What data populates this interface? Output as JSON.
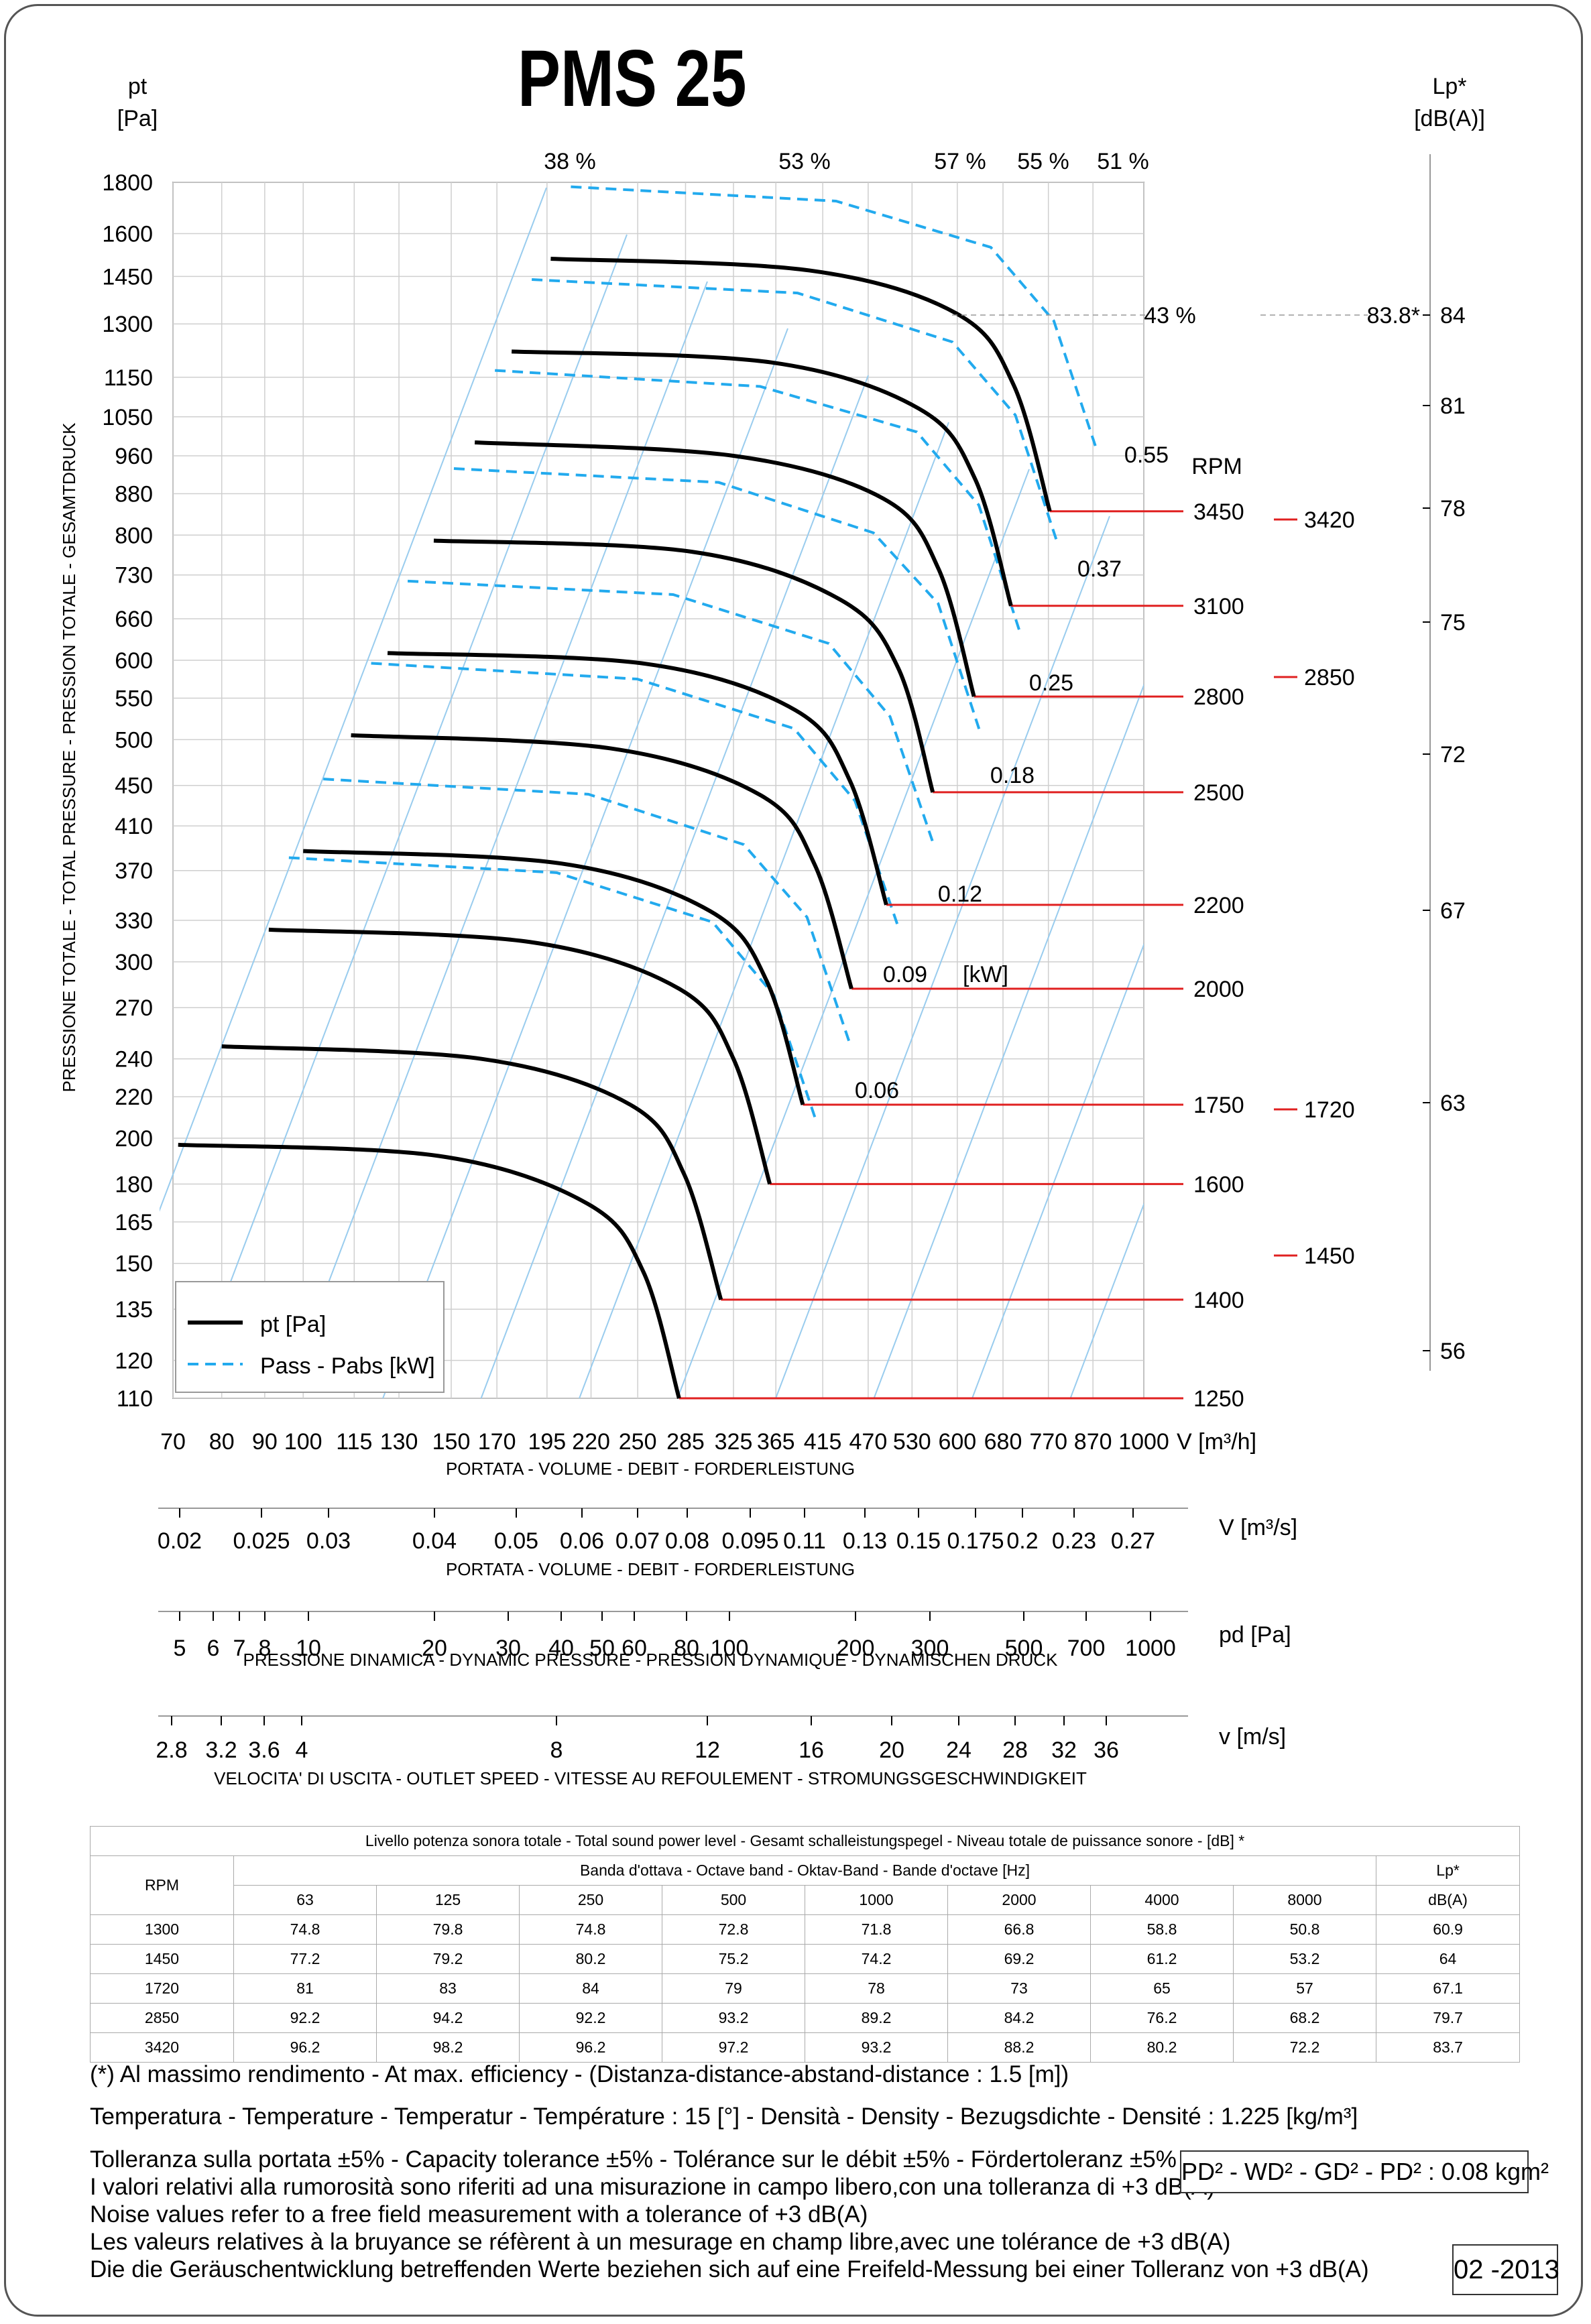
{
  "title": "PMS 25",
  "y_left_label": [
    "pt",
    "[Pa]"
  ],
  "y_right_label": [
    "Lp*",
    "[dB(A)]"
  ],
  "y_axis_title": "PRESSIONE TOTALE - TOTAL PRESSURE - PRESSION TOTALE - GESAMTDRUCK",
  "rpm_header": "RPM",
  "legend": {
    "pt": "pt [Pa]",
    "pass": "Pass - Pabs [kW]"
  },
  "axes": {
    "V_m3h": {
      "unit": "V [m³/h]",
      "title": "PORTATA - VOLUME - DEBIT - FORDERLEISTUNG",
      "ticks": [
        "70",
        "80",
        "90",
        "100",
        "115",
        "130",
        "150",
        "170",
        "195",
        "220",
        "250",
        "285",
        "325",
        "365",
        "415",
        "470",
        "530",
        "600",
        "680",
        "770",
        "870",
        "1000"
      ]
    },
    "V_m3s": {
      "unit": "V  [m³/s]",
      "title": "PORTATA - VOLUME - DEBIT - FORDERLEISTUNG",
      "ticks": [
        "0.02",
        "0.025",
        "0.03",
        "0.04",
        "0.05",
        "0.06",
        "0.07",
        "0.08",
        "0.095",
        "0.11",
        "0.13",
        "0.15",
        "0.175",
        "0.2",
        "0.23",
        "0.27"
      ]
    },
    "pd": {
      "unit": "pd  [Pa]",
      "title": "PRESSIONE DINAMICA - DYNAMIC PRESSURE - PRESSION DYNAMIQUE - DYNAMISCHEN DRUCK",
      "ticks": [
        "5",
        "6",
        "7",
        "8",
        "10",
        "20",
        "30",
        "40",
        "50",
        "60",
        "80",
        "100",
        "200",
        "300",
        "500",
        "700",
        "1000"
      ]
    },
    "v": {
      "unit": "v  [m/s]",
      "title": "VELOCITA' DI USCITA - OUTLET SPEED - VITESSE AU REFOULEMENT - STROMUNGSGESCHWINDIGKEIT",
      "ticks": [
        "2.8",
        "3.2",
        "3.6",
        "4",
        "8",
        "12",
        "16",
        "20",
        "24",
        "28",
        "32",
        "36"
      ]
    }
  },
  "y_ticks": [
    "1800",
    "1600",
    "1450",
    "1300",
    "1150",
    "1050",
    "960",
    "880",
    "800",
    "730",
    "660",
    "600",
    "550",
    "500",
    "450",
    "410",
    "370",
    "330",
    "300",
    "270",
    "240",
    "220",
    "200",
    "180",
    "165",
    "150",
    "135",
    "120",
    "110"
  ],
  "lp_ticks": [
    "84",
    "81",
    "78",
    "75",
    "72",
    "67",
    "63",
    "56"
  ],
  "efficiency_labels": [
    "38 %",
    "53 %",
    "57 %",
    "55 %",
    "51 %",
    "43 %"
  ],
  "lp_max_label": "83.8*",
  "power_labels": [
    "0.55",
    "0.37",
    "0.25",
    "0.18",
    "0.12",
    "0.09",
    "[kW]",
    "0.06"
  ],
  "chart_data": {
    "type": "line",
    "x_unit": "m³/h",
    "y_unit": "Pa",
    "log_scale": true,
    "xlim": [
      70,
      1000
    ],
    "ylim": [
      110,
      1800
    ],
    "series": [
      {
        "rpm": "3450",
        "pt_curve": {
          "x": [
            197,
            400,
            600,
            700,
            773
          ],
          "y": [
            1510,
            1470,
            1330,
            1130,
            845
          ]
        }
      },
      {
        "rpm": "3100",
        "pt_curve": {
          "x": [
            177,
            360,
            540,
            630,
            695
          ],
          "y": [
            1220,
            1190,
            1070,
            910,
            680
          ]
        }
      },
      {
        "rpm": "2800",
        "pt_curve": {
          "x": [
            160,
            325,
            490,
            570,
            628
          ],
          "y": [
            990,
            960,
            870,
            740,
            552
          ]
        }
      },
      {
        "rpm": "2500",
        "pt_curve": {
          "x": [
            143,
            290,
            435,
            510,
            561
          ],
          "y": [
            790,
            770,
            690,
            590,
            443
          ]
        }
      },
      {
        "rpm": "2200",
        "pt_curve": {
          "x": [
            126,
            256,
            385,
            447,
            494
          ],
          "y": [
            610,
            595,
            535,
            455,
            342
          ]
        }
      },
      {
        "rpm": "2000",
        "pt_curve": {
          "x": [
            114,
            232,
            350,
            406,
            449
          ],
          "y": [
            505,
            490,
            440,
            375,
            282
          ]
        }
      },
      {
        "rpm": "1750",
        "pt_curve": {
          "x": [
            100,
            203,
            305,
            356,
            393
          ],
          "y": [
            387,
            376,
            337,
            287,
            216
          ]
        }
      },
      {
        "rpm": "1600",
        "pt_curve": {
          "x": [
            91,
            186,
            280,
            325,
            359
          ],
          "y": [
            323,
            314,
            282,
            240,
            180
          ]
        }
      },
      {
        "rpm": "1400",
        "pt_curve": {
          "x": [
            80,
            163,
            245,
            284,
            314
          ],
          "y": [
            247,
            240,
            216,
            184,
            138
          ]
        }
      },
      {
        "rpm": "1250",
        "pt_curve": {
          "x": [
            71,
            145,
            218,
            254,
            280
          ],
          "y": [
            197,
            192,
            172,
            147,
            110
          ]
        }
      }
    ],
    "rpm_labels": [
      "3450",
      "3100",
      "2800",
      "2500",
      "2200",
      "2000",
      "1750",
      "1600",
      "1400",
      "1250"
    ],
    "sound_rpm_labels": [
      "3420",
      "2850",
      "1720",
      "1450"
    ]
  },
  "sound_table": {
    "title": "Livello potenza sonora totale - Total sound power level - Gesamt schalleistungspegel - Niveau totale de puissance sonore - [dB]   *",
    "band_header": "Banda d'ottava - Octave band - Oktav-Band - Bande d'octave [Hz]",
    "rpm_header": "RPM",
    "lp_header": [
      "Lp*",
      "dB(A)"
    ],
    "bands": [
      "63",
      "125",
      "250",
      "500",
      "1000",
      "2000",
      "4000",
      "8000"
    ],
    "rows": [
      [
        "1300",
        "74.8",
        "79.8",
        "74.8",
        "72.8",
        "71.8",
        "66.8",
        "58.8",
        "50.8",
        "60.9"
      ],
      [
        "1450",
        "77.2",
        "79.2",
        "80.2",
        "75.2",
        "74.2",
        "69.2",
        "61.2",
        "53.2",
        "64"
      ],
      [
        "1720",
        "81",
        "83",
        "84",
        "79",
        "78",
        "73",
        "65",
        "57",
        "67.1"
      ],
      [
        "2850",
        "92.2",
        "94.2",
        "92.2",
        "93.2",
        "89.2",
        "84.2",
        "76.2",
        "68.2",
        "79.7"
      ],
      [
        "3420",
        "96.2",
        "98.2",
        "96.2",
        "97.2",
        "93.2",
        "88.2",
        "80.2",
        "72.2",
        "83.7"
      ]
    ]
  },
  "notes": {
    "efficiency": "(*) Al massimo rendimento - At max. efficiency - (Distanza-distance-abstand-distance : 1.5 [m])",
    "conditions": "Temperatura - Temperature - Temperatur - Température : 15 [°]  -  Densità - Density - Bezugsdichte - Densité : 1.225 [kg/m³]",
    "tolerance": [
      "Tolleranza sulla portata  ±5% - Capacity tolerance ±5% - Tolérance sur le débit ±5% - Fördertoleranz ±5%",
      "I valori relativi alla rumorosità sono riferiti ad una misurazione in campo libero,con una tolleranza di +3 dB(A)",
      "Noise values refer to a free field measurement with a tolerance of +3 dB(A)",
      "Les valeurs relatives à la bruyance se réfèrent à un mesurage en champ libre,avec une tolérance de +3 dB(A)",
      "Die die Geräuschentwicklung betreffenden Werte beziehen sich auf eine Freifeld-Messung bei einer Tolleranz von +3 dB(A)"
    ],
    "inertia": "PD² -  WD² - GD² -  PD²  :  0.08 kgm²",
    "date": "02 -2013"
  },
  "colors": {
    "pt_curve": "#000000",
    "power_curve": "#22aaee",
    "efficiency_line": "#99ccee",
    "rpm_line": "#e02020"
  }
}
